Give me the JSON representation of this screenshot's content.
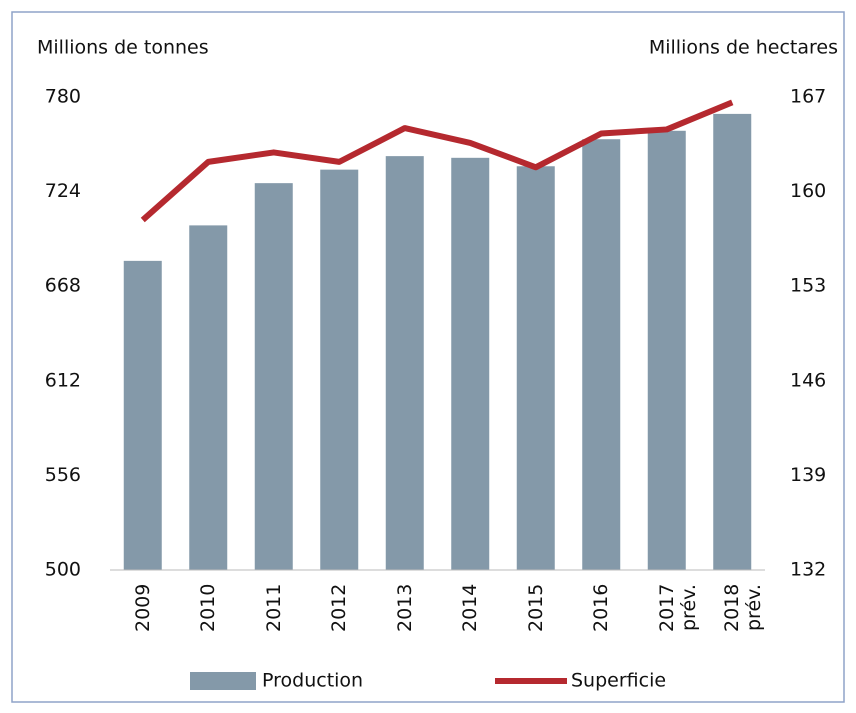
{
  "chart_data": {
    "type": "bar_line",
    "y_label": "Millions de tonnes",
    "y2_label": "Millions de hectares",
    "categories": [
      "2009",
      "2010",
      "2011",
      "2012",
      "2013",
      "2014",
      "2015",
      "2016",
      "2017 prév.",
      "2018 prév."
    ],
    "series": [
      {
        "name": "Production",
        "type": "bar",
        "color": "#8499a9",
        "values": [
          683,
          704,
          729,
          737,
          745,
          744,
          739,
          755,
          760,
          770
        ]
      },
      {
        "name": "Superficie",
        "type": "line",
        "axis": "y2",
        "color": "#b5292f",
        "values": [
          157.9,
          162.2,
          162.9,
          162.2,
          164.7,
          163.6,
          161.8,
          164.3,
          164.6,
          166.6
        ]
      }
    ],
    "ylim": [
      500,
      780
    ],
    "yticks": [
      500,
      556,
      612,
      668,
      724,
      780
    ],
    "y2lim": [
      132,
      167
    ],
    "y2ticks": [
      132,
      139,
      146,
      153,
      160,
      167
    ],
    "grid": false
  }
}
